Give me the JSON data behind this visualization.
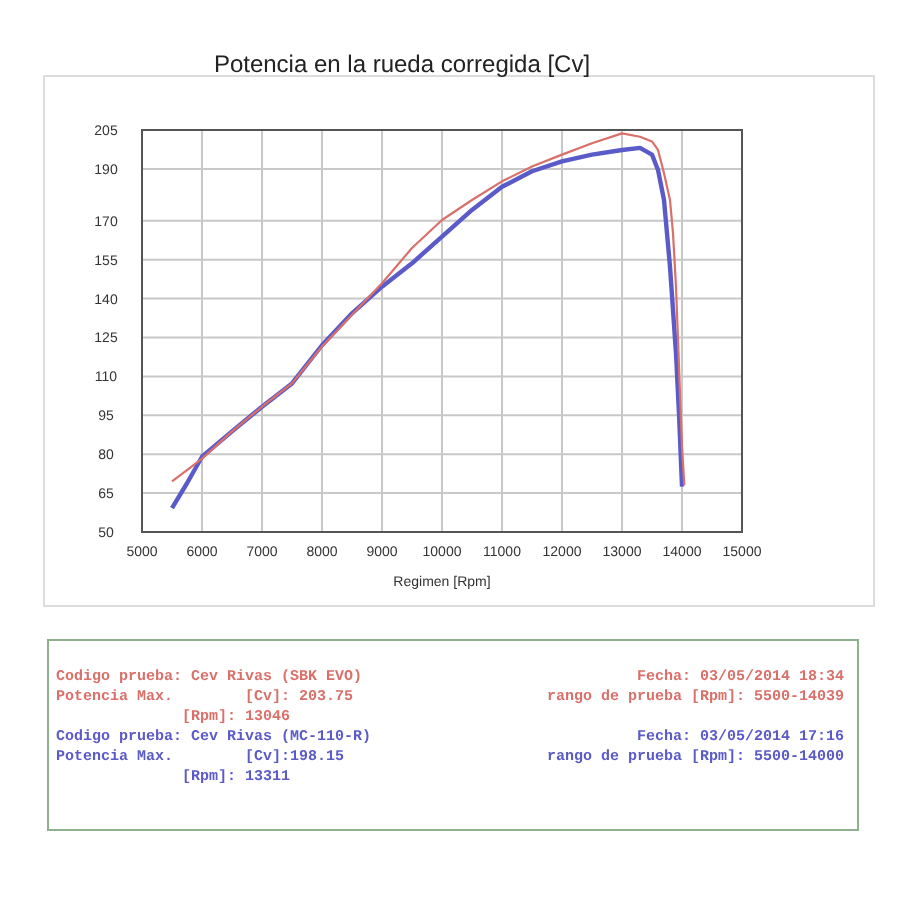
{
  "chart_data": {
    "type": "line",
    "title": "Potencia en la rueda corregida [Cv]",
    "xlabel": "Regimen [Rpm]",
    "xlim": [
      5000,
      15000
    ],
    "xticks": [
      5000,
      6000,
      7000,
      8000,
      9000,
      10000,
      11000,
      12000,
      13000,
      14000,
      15000
    ],
    "ylim": [
      50,
      205
    ],
    "yticks": [
      50,
      65,
      80,
      95,
      110,
      125,
      140,
      155,
      170,
      190,
      205
    ],
    "grid": true,
    "marker": "none",
    "line_style": "solid",
    "series": [
      {
        "color": "#d9706a",
        "x": [
          5500,
          5750,
          6000,
          6500,
          7000,
          7500,
          8000,
          8500,
          9000,
          9500,
          10000,
          10500,
          11000,
          11500,
          12000,
          12500,
          13000,
          13300,
          13500,
          13600,
          13700,
          13800,
          13850,
          13900,
          13950,
          14000,
          14039
        ],
        "values": [
          69.5,
          73.9,
          78.3,
          88.8,
          98.3,
          107.3,
          121.5,
          133.8,
          145.9,
          159.5,
          170.3,
          178,
          185.2,
          190.9,
          195.5,
          199.9,
          203.7,
          202.4,
          200.6,
          197.3,
          188.3,
          178,
          165.2,
          144.6,
          113.7,
          82.9,
          68
        ]
      },
      {
        "color": "#5a5ac8",
        "x": [
          5500,
          5750,
          6000,
          6500,
          7000,
          7500,
          8000,
          8500,
          9000,
          9500,
          10000,
          10500,
          11000,
          11500,
          12000,
          12500,
          13000,
          13300,
          13500,
          13600,
          13700,
          13800,
          13900,
          13950,
          14000
        ],
        "values": [
          59.2,
          68.8,
          79,
          88.8,
          98.3,
          107.3,
          122,
          134.3,
          144.6,
          153.6,
          163.9,
          174.2,
          183.1,
          189.1,
          192.9,
          195.5,
          197.3,
          198.1,
          195.5,
          189.6,
          178,
          152.3,
          118.9,
          95.7,
          67.5
        ]
      }
    ],
    "annotations": [
      "Codigo prueba: Cev Rivas (SBK EVO)",
      "Fecha: 03/05/2014 18:34",
      "Potencia Max.        [Cv]: 203.75",
      "rango de prueba [Rpm]: 5500-14039",
      "[Rpm]: 13046",
      "Codigo prueba: Cev Rivas (MC-110-R)",
      "Fecha: 03/05/2014 17:16",
      "Potencia Max.        [Cv]:198.15",
      "rango de prueba [Rpm]: 5500-14000",
      "[Rpm]: 13311"
    ]
  }
}
